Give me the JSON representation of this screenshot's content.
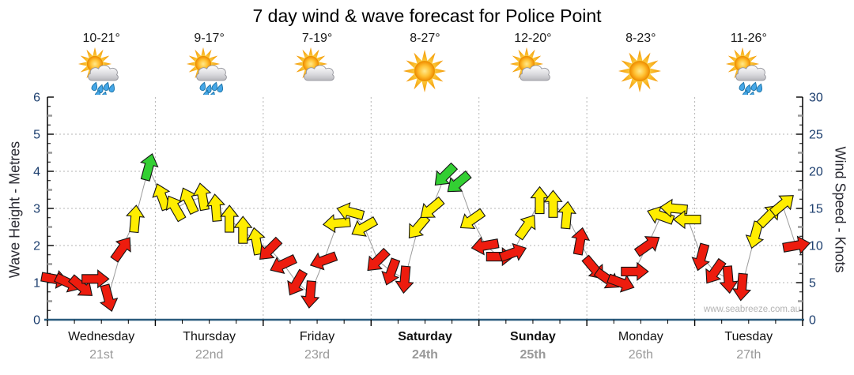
{
  "title": "7 day wind & wave forecast for Police Point",
  "watermark": "www.seabreeze.com.au",
  "days": [
    {
      "name": "Wednesday",
      "date": "21st",
      "temps": "10-21°",
      "icon": "sun-cloud-rain",
      "weekend": false
    },
    {
      "name": "Thursday",
      "date": "22nd",
      "temps": "9-17°",
      "icon": "sun-cloud-rain",
      "weekend": false
    },
    {
      "name": "Friday",
      "date": "23rd",
      "temps": "7-19°",
      "icon": "sun-cloud",
      "weekend": false
    },
    {
      "name": "Saturday",
      "date": "24th",
      "temps": "8-27°",
      "icon": "sun",
      "weekend": true
    },
    {
      "name": "Sunday",
      "date": "25th",
      "temps": "12-20°",
      "icon": "sun-cloud",
      "weekend": true
    },
    {
      "name": "Monday",
      "date": "26th",
      "temps": "8-23°",
      "icon": "sun",
      "weekend": false
    },
    {
      "name": "Tuesday",
      "date": "27th",
      "temps": "11-26°",
      "icon": "sun-cloud-rain",
      "weekend": false
    }
  ],
  "chart_data": {
    "type": "wind-arrows",
    "left_axis": {
      "label": "Wave Height - Metres",
      "min": 0,
      "max": 6,
      "ticks": [
        0,
        1,
        2,
        3,
        4,
        5,
        6
      ]
    },
    "right_axis": {
      "label": "Wind Speed - Knots",
      "min": 0,
      "max": 30,
      "ticks": [
        0,
        5,
        10,
        15,
        20,
        25,
        30
      ]
    },
    "x_axis": {
      "days": 7,
      "points_per_day": 8,
      "grid": "dotted-at-day-boundaries"
    },
    "speed_colors": {
      "red": "#ed1c0e",
      "yellow": "#ffed00",
      "green": "#33cf33"
    },
    "style_colors": {
      "axis_numbers": "#1c3e6e",
      "baseline": "#2a5b7d",
      "grid": "#b5b5b5",
      "connector": "#9b9b9b",
      "date_text": "#999999"
    },
    "points": [
      {
        "knots": 5.5,
        "dir": 100,
        "c": "red"
      },
      {
        "knots": 5,
        "dir": 115,
        "c": "red"
      },
      {
        "knots": 4.5,
        "dir": 130,
        "c": "red"
      },
      {
        "knots": 5.5,
        "dir": 90,
        "c": "red"
      },
      {
        "knots": 3,
        "dir": 165,
        "c": "red"
      },
      {
        "knots": 9.5,
        "dir": 35,
        "c": "red"
      },
      {
        "knots": 13.5,
        "dir": 5,
        "c": "yellow"
      },
      {
        "knots": 20.5,
        "dir": 15,
        "c": "green"
      },
      {
        "knots": 16.5,
        "dir": 340,
        "c": "yellow"
      },
      {
        "knots": 15,
        "dir": 330,
        "c": "yellow"
      },
      {
        "knots": 16,
        "dir": 335,
        "c": "yellow"
      },
      {
        "knots": 16.5,
        "dir": 350,
        "c": "yellow"
      },
      {
        "knots": 15,
        "dir": 355,
        "c": "yellow"
      },
      {
        "knots": 13.5,
        "dir": 0,
        "c": "yellow"
      },
      {
        "knots": 12,
        "dir": 0,
        "c": "yellow"
      },
      {
        "knots": 10.5,
        "dir": 350,
        "c": "yellow"
      },
      {
        "knots": 9.5,
        "dir": 225,
        "c": "red"
      },
      {
        "knots": 7.5,
        "dir": 245,
        "c": "red"
      },
      {
        "knots": 5,
        "dir": 210,
        "c": "red"
      },
      {
        "knots": 3.5,
        "dir": 185,
        "c": "red"
      },
      {
        "knots": 8,
        "dir": 250,
        "c": "red"
      },
      {
        "knots": 13,
        "dir": 265,
        "c": "yellow"
      },
      {
        "knots": 14.5,
        "dir": 285,
        "c": "yellow"
      },
      {
        "knots": 12.5,
        "dir": 240,
        "c": "yellow"
      },
      {
        "knots": 8,
        "dir": 225,
        "c": "red"
      },
      {
        "knots": 6.5,
        "dir": 200,
        "c": "red"
      },
      {
        "knots": 5.5,
        "dir": 185,
        "c": "red"
      },
      {
        "knots": 12.5,
        "dir": 220,
        "c": "yellow"
      },
      {
        "knots": 15,
        "dir": 230,
        "c": "yellow"
      },
      {
        "knots": 19.5,
        "dir": 225,
        "c": "green"
      },
      {
        "knots": 18.5,
        "dir": 230,
        "c": "green"
      },
      {
        "knots": 13.5,
        "dir": 235,
        "c": "yellow"
      },
      {
        "knots": 10,
        "dir": 260,
        "c": "red"
      },
      {
        "knots": 8.5,
        "dir": 90,
        "c": "red"
      },
      {
        "knots": 9,
        "dir": 70,
        "c": "red"
      },
      {
        "knots": 12.5,
        "dir": 35,
        "c": "yellow"
      },
      {
        "knots": 16,
        "dir": 0,
        "c": "yellow"
      },
      {
        "knots": 15.5,
        "dir": 0,
        "c": "yellow"
      },
      {
        "knots": 14,
        "dir": 5,
        "c": "yellow"
      },
      {
        "knots": 10.5,
        "dir": 10,
        "c": "red"
      },
      {
        "knots": 7,
        "dir": 140,
        "c": "red"
      },
      {
        "knots": 5.5,
        "dir": 125,
        "c": "red"
      },
      {
        "knots": 5,
        "dir": 110,
        "c": "red"
      },
      {
        "knots": 6.5,
        "dir": 90,
        "c": "red"
      },
      {
        "knots": 10,
        "dir": 55,
        "c": "red"
      },
      {
        "knots": 14,
        "dir": 290,
        "c": "yellow"
      },
      {
        "knots": 15,
        "dir": 275,
        "c": "yellow"
      },
      {
        "knots": 13.5,
        "dir": 270,
        "c": "yellow"
      },
      {
        "knots": 8.5,
        "dir": 195,
        "c": "red"
      },
      {
        "knots": 6.5,
        "dir": 215,
        "c": "red"
      },
      {
        "knots": 5.5,
        "dir": 175,
        "c": "red"
      },
      {
        "knots": 4.5,
        "dir": 185,
        "c": "red"
      },
      {
        "knots": 11.5,
        "dir": 195,
        "c": "yellow"
      },
      {
        "knots": 14,
        "dir": 45,
        "c": "yellow"
      },
      {
        "knots": 15.5,
        "dir": 50,
        "c": "yellow"
      },
      {
        "knots": 10,
        "dir": 80,
        "c": "red"
      }
    ]
  }
}
